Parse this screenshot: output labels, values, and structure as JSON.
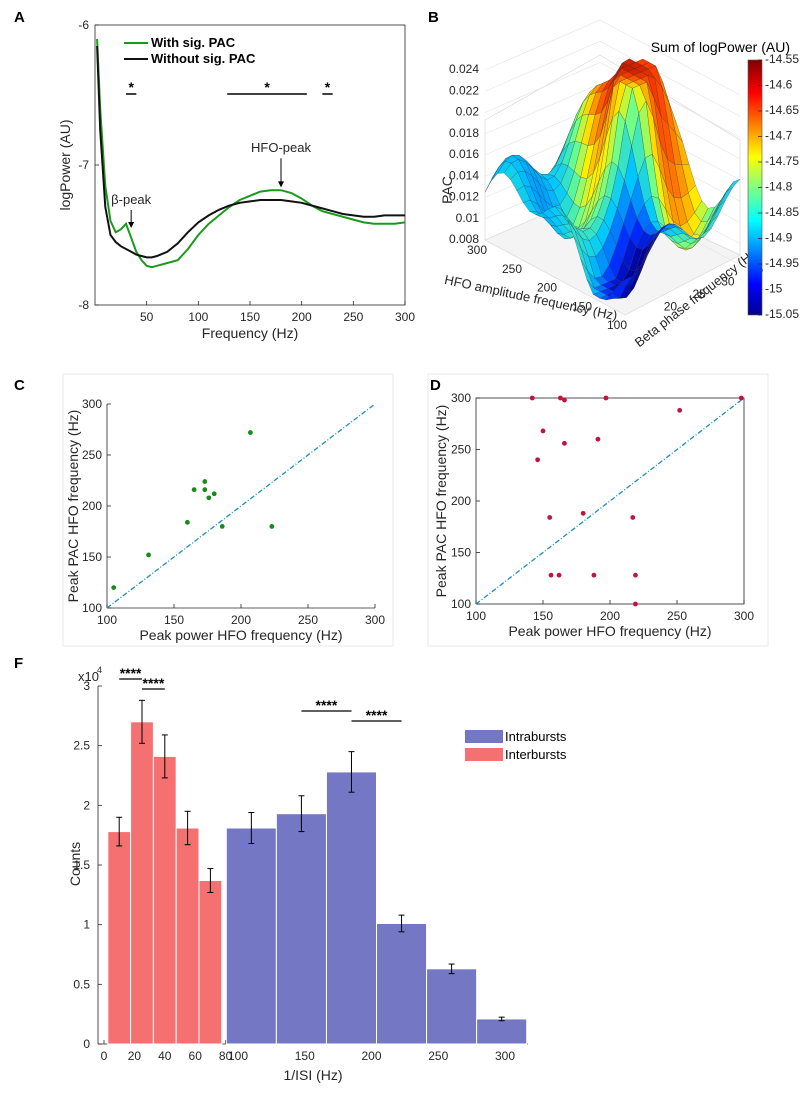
{
  "panels": {
    "A": "A",
    "B": "B",
    "C": "C",
    "D": "D",
    "F": "F"
  },
  "chart_data": [
    {
      "id": "A",
      "type": "line",
      "xlabel": "Frequency (Hz)",
      "ylabel": "logPower (AU)",
      "xlim": [
        0,
        300
      ],
      "ylim": [
        -8,
        -6
      ],
      "xticks": [
        "50",
        "100",
        "150",
        "200",
        "250",
        "300"
      ],
      "yticks": [
        "-6",
        "-7",
        "-8"
      ],
      "legend": [
        "With sig. PAC",
        "Without sig. PAC"
      ],
      "series": [
        {
          "name": "With sig. PAC",
          "color": "#1a9a1a",
          "x": [
            2,
            5,
            10,
            15,
            20,
            25,
            30,
            35,
            40,
            45,
            50,
            55,
            60,
            70,
            80,
            90,
            100,
            110,
            120,
            130,
            140,
            150,
            160,
            170,
            180,
            190,
            200,
            210,
            220,
            230,
            240,
            250,
            260,
            270,
            280,
            290,
            300
          ],
          "y": [
            -6.1,
            -6.6,
            -7.15,
            -7.4,
            -7.48,
            -7.46,
            -7.42,
            -7.52,
            -7.62,
            -7.68,
            -7.72,
            -7.73,
            -7.72,
            -7.7,
            -7.68,
            -7.6,
            -7.5,
            -7.42,
            -7.36,
            -7.3,
            -7.25,
            -7.22,
            -7.19,
            -7.18,
            -7.18,
            -7.2,
            -7.24,
            -7.29,
            -7.33,
            -7.35,
            -7.37,
            -7.39,
            -7.41,
            -7.42,
            -7.42,
            -7.42,
            -7.41
          ]
        },
        {
          "name": "Without sig. PAC",
          "color": "#111111",
          "x": [
            2,
            5,
            10,
            15,
            20,
            25,
            30,
            35,
            40,
            45,
            50,
            55,
            60,
            70,
            80,
            90,
            100,
            110,
            120,
            130,
            140,
            150,
            160,
            170,
            180,
            190,
            200,
            210,
            220,
            230,
            240,
            250,
            260,
            270,
            280,
            290,
            300
          ],
          "y": [
            -6.15,
            -6.75,
            -7.3,
            -7.5,
            -7.55,
            -7.58,
            -7.6,
            -7.62,
            -7.64,
            -7.65,
            -7.66,
            -7.66,
            -7.65,
            -7.62,
            -7.56,
            -7.48,
            -7.41,
            -7.36,
            -7.32,
            -7.29,
            -7.27,
            -7.26,
            -7.25,
            -7.25,
            -7.25,
            -7.26,
            -7.27,
            -7.29,
            -7.31,
            -7.33,
            -7.35,
            -7.36,
            -7.37,
            -7.37,
            -7.36,
            -7.36,
            -7.36
          ]
        }
      ],
      "annotations": [
        {
          "text": "β-peak",
          "x": 35,
          "y": -7.35,
          "arrow_to": [
            35,
            -7.45
          ]
        },
        {
          "text": "HFO-peak",
          "x": 180,
          "y": -6.98,
          "arrow_to": [
            180,
            -7.16
          ]
        }
      ],
      "significance": [
        {
          "x1": 30,
          "x2": 40,
          "label": "*"
        },
        {
          "x1": 128,
          "x2": 205,
          "label": "*"
        },
        {
          "x1": 220,
          "x2": 230,
          "label": "*"
        }
      ]
    },
    {
      "id": "B",
      "type": "surface",
      "zlabel": "PAC",
      "xlabel": "HFO amplitude frequency (Hz)",
      "ylabel": "Beta phase frequency (Hz)",
      "colorbar_title": "Sum of logPower (AU)",
      "zticks": [
        "0.024",
        "0.022",
        "0.02",
        "0.018",
        "0.016",
        "0.014",
        "0.012",
        "0.01",
        "0.008"
      ],
      "xticks": [
        "300",
        "250",
        "200",
        "150",
        "100"
      ],
      "yticks": [
        "20",
        "25",
        "30",
        "35"
      ],
      "colorbar_ticks": [
        "-14.55",
        "-14.6",
        "-14.65",
        "-14.7",
        "-14.75",
        "-14.8",
        "-14.85",
        "-14.9",
        "-14.95",
        "-15",
        "-15.05"
      ],
      "zlim": [
        0.008,
        0.024
      ],
      "clim": [
        -15.05,
        -14.55
      ]
    },
    {
      "id": "C",
      "type": "scatter",
      "xlabel": "Peak power HFO frequency (Hz)",
      "ylabel": "Peak PAC HFO frequency (Hz)",
      "xlim": [
        100,
        300
      ],
      "ylim": [
        100,
        300
      ],
      "xticks": [
        "100",
        "150",
        "200",
        "250",
        "300"
      ],
      "yticks": [
        "100",
        "150",
        "200",
        "250",
        "300"
      ],
      "color": "#1a8a1a",
      "points": [
        [
          105,
          120
        ],
        [
          131,
          152
        ],
        [
          160,
          184
        ],
        [
          165,
          216
        ],
        [
          173,
          224
        ],
        [
          173,
          216
        ],
        [
          176,
          208
        ],
        [
          180,
          212
        ],
        [
          186,
          180
        ],
        [
          207,
          272
        ],
        [
          223,
          180
        ]
      ],
      "identity_line": true
    },
    {
      "id": "D",
      "type": "scatter",
      "xlabel": "Peak power HFO frequency (Hz)",
      "ylabel": "Peak PAC HFO frequency (Hz)",
      "xlim": [
        100,
        300
      ],
      "ylim": [
        100,
        300
      ],
      "xticks": [
        "100",
        "150",
        "200",
        "250",
        "300"
      ],
      "yticks": [
        "100",
        "150",
        "200",
        "250",
        "300"
      ],
      "color": "#c0143c",
      "points": [
        [
          142,
          300
        ],
        [
          146,
          240
        ],
        [
          150,
          268
        ],
        [
          155,
          184
        ],
        [
          156,
          128
        ],
        [
          162,
          128
        ],
        [
          163,
          300
        ],
        [
          166,
          256
        ],
        [
          166,
          298
        ],
        [
          180,
          188
        ],
        [
          188,
          128
        ],
        [
          191,
          260
        ],
        [
          197,
          300
        ],
        [
          217,
          184
        ],
        [
          219,
          128
        ],
        [
          219,
          100
        ],
        [
          252,
          288
        ],
        [
          298,
          300
        ]
      ],
      "identity_line": true
    },
    {
      "id": "F",
      "type": "bar",
      "xlabel": "1/ISI (Hz)",
      "ylabel": "Counts",
      "exponent_label": "x10",
      "exponent_power": "4",
      "ylim": [
        0,
        3
      ],
      "yticks": [
        "0",
        "0.5",
        "1",
        "1.5",
        "2",
        "2.5",
        "3"
      ],
      "legend": [
        "Intrabursts",
        "Interbursts"
      ],
      "series": [
        {
          "name": "Interbursts",
          "color": "#f57070",
          "xticks": [
            "0",
            "20",
            "40",
            "60",
            "80"
          ],
          "bin_width": 15,
          "bins": [
            10,
            25,
            40,
            55,
            70
          ],
          "values": [
            1.78,
            2.7,
            2.41,
            1.81,
            1.37
          ],
          "errors": [
            0.12,
            0.18,
            0.18,
            0.14,
            0.1
          ]
        },
        {
          "name": "Intrabursts",
          "color": "#7377c4",
          "xticks": [
            "100",
            "150",
            "200",
            "250",
            "300"
          ],
          "bin_width": 37.5,
          "bins": [
            110,
            147.5,
            185,
            222.5,
            260,
            297.5
          ],
          "values": [
            1.81,
            1.93,
            2.28,
            1.01,
            0.63,
            0.21
          ],
          "errors": [
            0.13,
            0.15,
            0.17,
            0.07,
            0.04,
            0.015
          ]
        }
      ],
      "significance": [
        {
          "group": "Interbursts",
          "from": 0,
          "to": 1,
          "label": "****",
          "level": 0
        },
        {
          "group": "Interbursts",
          "from": 1,
          "to": 2,
          "label": "****",
          "level": 1
        },
        {
          "group": "Intrabursts",
          "from": 1,
          "to": 2,
          "label": "****",
          "level": 0
        },
        {
          "group": "Intrabursts",
          "from": 2,
          "to": 3,
          "label": "****",
          "level": 1
        }
      ]
    }
  ]
}
